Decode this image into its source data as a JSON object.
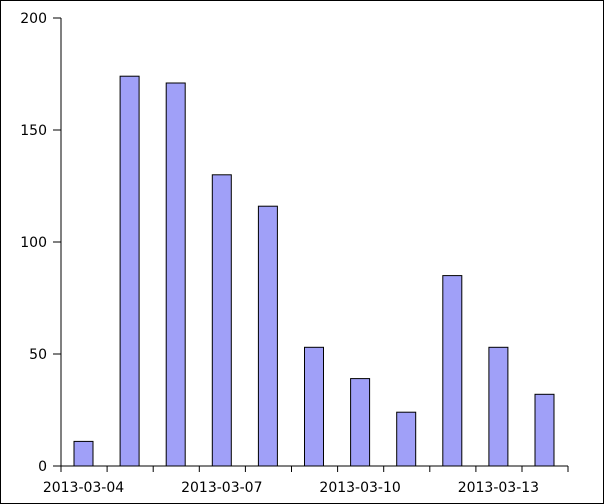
{
  "chart_data": {
    "type": "bar",
    "title": "",
    "xlabel": "",
    "ylabel": "",
    "categories": [
      "2013-03-04",
      "2013-03-05",
      "2013-03-06",
      "2013-03-07",
      "2013-03-08",
      "2013-03-09",
      "2013-03-10",
      "2013-03-11",
      "2013-03-12",
      "2013-03-13",
      "2013-03-14"
    ],
    "values": [
      11,
      174,
      171,
      130,
      116,
      53,
      39,
      24,
      85,
      53,
      32
    ],
    "ylim": [
      0,
      200
    ],
    "y_ticks": [
      0,
      50,
      100,
      150,
      200
    ],
    "x_tick_labels": [
      "2013-03-04",
      "2013-03-07",
      "2013-03-10",
      "2013-03-13"
    ],
    "bar_color": "#a0a0f8",
    "bar_edge_color": "#000000",
    "grid": false,
    "legend": "none"
  }
}
